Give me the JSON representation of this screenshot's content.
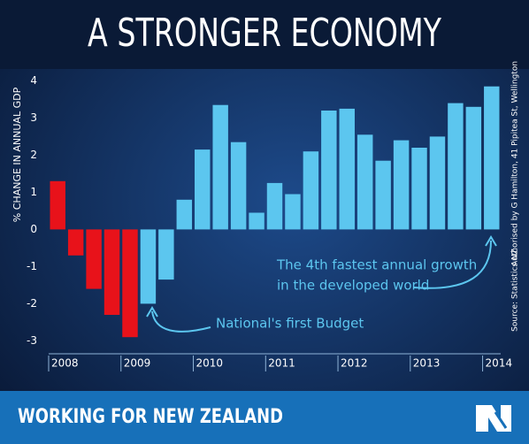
{
  "chart_data": {
    "type": "bar",
    "title": "A STRONGER ECONOMY",
    "y_label": "% CHANGE IN ANNUAL GDP",
    "categories": [
      "2008",
      null,
      null,
      null,
      "2009",
      null,
      null,
      null,
      "2010",
      null,
      null,
      null,
      "2011",
      null,
      null,
      null,
      "2012",
      null,
      null,
      null,
      "2013",
      null,
      null,
      null,
      "2014"
    ],
    "values": [
      1.3,
      -0.7,
      -1.6,
      -2.3,
      -2.9,
      -2.0,
      -1.35,
      0.8,
      2.15,
      3.35,
      2.35,
      0.45,
      1.25,
      0.95,
      2.1,
      3.2,
      3.25,
      2.55,
      1.85,
      2.4,
      2.2,
      2.5,
      3.4,
      3.3,
      3.85
    ],
    "colors": [
      "#e8121a",
      "#e8121a",
      "#e8121a",
      "#e8121a",
      "#e8121a",
      "#5cc6ef",
      "#5cc6ef",
      "#5cc6ef",
      "#5cc6ef",
      "#5cc6ef",
      "#5cc6ef",
      "#5cc6ef",
      "#5cc6ef",
      "#5cc6ef",
      "#5cc6ef",
      "#5cc6ef",
      "#5cc6ef",
      "#5cc6ef",
      "#5cc6ef",
      "#5cc6ef",
      "#5cc6ef",
      "#5cc6ef",
      "#5cc6ef",
      "#5cc6ef",
      "#5cc6ef"
    ],
    "ylim": [
      -3.3,
      4.2
    ],
    "yticks": [
      -3,
      -2,
      -1,
      0,
      1,
      2,
      3,
      4
    ],
    "annotations": [
      "National's first Budget",
      "The 4th fastest annual growth",
      "in the developed world"
    ],
    "credit": "Authorised by G Hamilton, 41 Pipitea St, Wellington",
    "source": "Source: Statistics NZ",
    "footer": "WORKING FOR NEW ZEALAND"
  }
}
